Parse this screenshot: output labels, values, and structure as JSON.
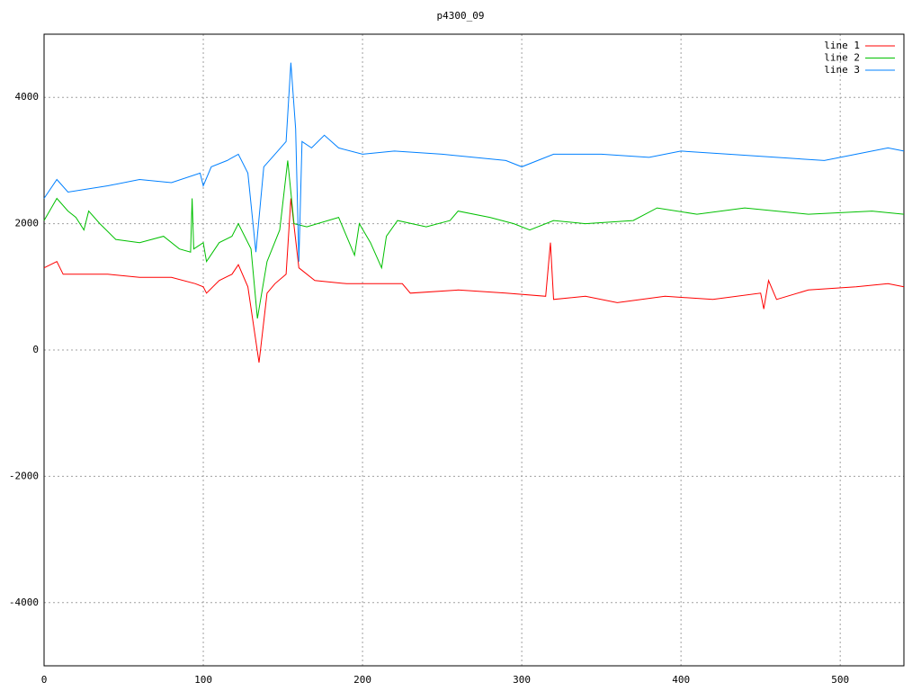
{
  "chart_data": {
    "type": "line",
    "title": "p4300_09",
    "xlim": [
      0,
      540
    ],
    "xticks": [
      0,
      100,
      200,
      300,
      400,
      500
    ],
    "ylim": [
      -5000,
      5000
    ],
    "yticks": [
      -4000,
      -2000,
      0,
      2000,
      4000
    ],
    "grid": true,
    "legend": "top-right",
    "series": [
      {
        "name": "line 1",
        "color": "#ff0000",
        "x": [
          0,
          8,
          12,
          40,
          60,
          80,
          95,
          100,
          102,
          110,
          118,
          122,
          128,
          135,
          140,
          145,
          152,
          155,
          160,
          170,
          190,
          200,
          225,
          230,
          260,
          290,
          315,
          318,
          320,
          340,
          360,
          390,
          420,
          450,
          452,
          455,
          460,
          480,
          510,
          530,
          540
        ],
        "values": [
          1300,
          1400,
          1200,
          1200,
          1150,
          1150,
          1050,
          1000,
          900,
          1100,
          1200,
          1350,
          1000,
          -200,
          900,
          1050,
          1200,
          2400,
          1300,
          1100,
          1050,
          1050,
          1050,
          900,
          950,
          900,
          850,
          1700,
          800,
          850,
          750,
          850,
          800,
          900,
          650,
          1100,
          800,
          950,
          1000,
          1050,
          1000
        ]
      },
      {
        "name": "line 2",
        "color": "#00c000",
        "x": [
          0,
          8,
          15,
          20,
          25,
          28,
          35,
          45,
          60,
          75,
          85,
          92,
          93,
          94,
          100,
          102,
          110,
          118,
          122,
          130,
          134,
          140,
          148,
          153,
          157,
          165,
          185,
          195,
          198,
          205,
          212,
          215,
          222,
          240,
          255,
          260,
          280,
          295,
          305,
          320,
          340,
          370,
          385,
          410,
          440,
          480,
          520,
          540
        ],
        "values": [
          2050,
          2400,
          2200,
          2100,
          1900,
          2200,
          2000,
          1750,
          1700,
          1800,
          1600,
          1550,
          2400,
          1600,
          1700,
          1400,
          1700,
          1800,
          2000,
          1600,
          500,
          1400,
          1900,
          3000,
          2000,
          1950,
          2100,
          1500,
          2000,
          1700,
          1300,
          1800,
          2050,
          1950,
          2050,
          2200,
          2100,
          2000,
          1900,
          2050,
          2000,
          2050,
          2250,
          2150,
          2250,
          2150,
          2200,
          2150
        ]
      },
      {
        "name": "line 3",
        "color": "#0080ff",
        "x": [
          0,
          8,
          15,
          40,
          60,
          80,
          98,
          100,
          105,
          115,
          122,
          128,
          133,
          138,
          145,
          152,
          155,
          158,
          160,
          162,
          168,
          176,
          185,
          200,
          220,
          250,
          270,
          290,
          300,
          320,
          350,
          380,
          400,
          430,
          460,
          490,
          510,
          530,
          540
        ],
        "values": [
          2400,
          2700,
          2500,
          2600,
          2700,
          2650,
          2800,
          2600,
          2900,
          3000,
          3100,
          2800,
          1550,
          2900,
          3100,
          3300,
          4550,
          3500,
          1400,
          3300,
          3200,
          3400,
          3200,
          3100,
          3150,
          3100,
          3050,
          3000,
          2900,
          3100,
          3100,
          3050,
          3150,
          3100,
          3050,
          3000,
          3100,
          3200,
          3150
        ]
      }
    ]
  }
}
